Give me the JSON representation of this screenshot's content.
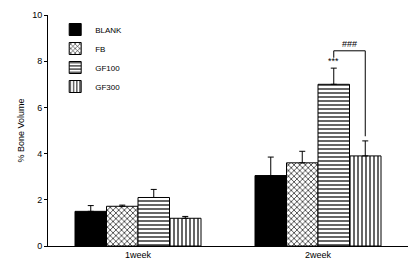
{
  "chart_data": {
    "type": "bar",
    "y_label": "% Bone Volume",
    "categories": [
      "1week",
      "2week"
    ],
    "series": [
      {
        "name": "BLANK",
        "color": "#000000",
        "values": [
          1.5,
          3.05
        ],
        "errors": [
          0.25,
          0.8
        ]
      },
      {
        "name": "FB",
        "color": "#ffffff",
        "values": [
          1.72,
          3.6
        ],
        "errors": [
          0.05,
          0.5
        ]
      },
      {
        "name": "GF100",
        "color": "#ffffff",
        "values": [
          2.1,
          7.0
        ],
        "errors": [
          0.35,
          0.7
        ]
      },
      {
        "name": "GF300",
        "color": "#ffffff",
        "values": [
          1.2,
          3.9
        ],
        "errors": [
          0.08,
          0.65
        ]
      }
    ],
    "ylim": [
      0,
      10
    ],
    "yticks": [
      0,
      2,
      4,
      6,
      8,
      10
    ],
    "grid": false,
    "legend": "top left",
    "annotations": [
      {
        "text": "***",
        "category": "2week",
        "series": [
          "GF100"
        ]
      },
      {
        "text": "###",
        "category": "2week",
        "series": [
          "GF100",
          "GF300"
        ]
      }
    ]
  }
}
